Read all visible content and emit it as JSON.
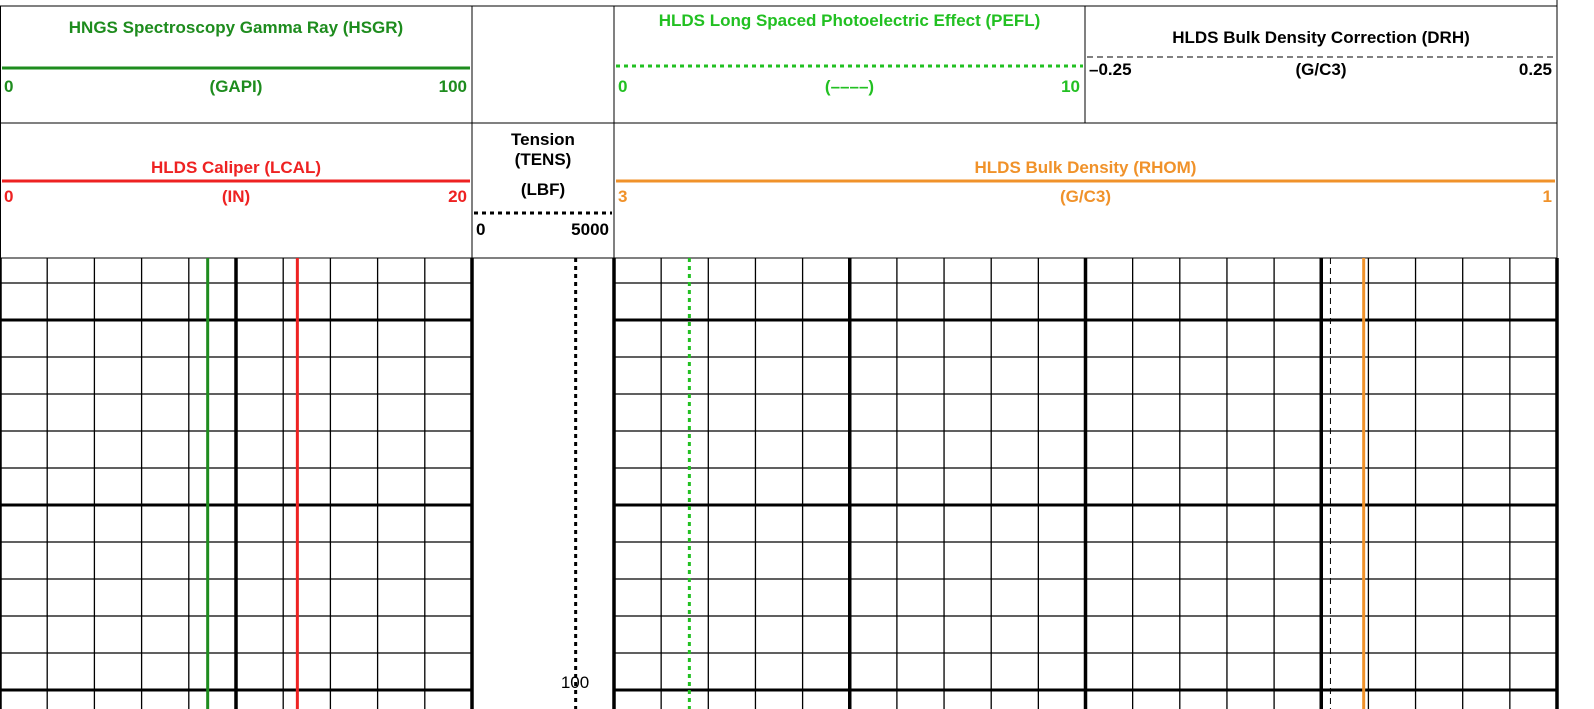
{
  "chart_data": {
    "type": "well-log",
    "depth_ticks": [
      100
    ],
    "curves": [
      {
        "name": "HNGS Spectroscopy Gamma Ray (HSGR)",
        "unit": "(GAPI)",
        "color": "#1e8c1e",
        "line_style": "solid",
        "xlim": [
          0,
          100
        ],
        "xticks": [
          0,
          100
        ],
        "values": [
          44
        ]
      },
      {
        "name": "HLDS Long Spaced Photoelectric Effect (PEFL)",
        "unit": "(––––)",
        "color": "#22c022",
        "line_style": "dotted",
        "xlim": [
          0,
          10
        ],
        "xticks": [
          0,
          10
        ],
        "values": [
          1.6
        ]
      },
      {
        "name": "HLDS Bulk Density Correction (DRH)",
        "unit": "(G/C3)",
        "color": "#000000",
        "line_style": "dashed",
        "xlim": [
          -0.25,
          0.25
        ],
        "xticks": [
          {
            "value": -0.25,
            "label": "–0.25"
          },
          0.25
        ],
        "values": [
          0.01
        ]
      },
      {
        "name": "HLDS Caliper (LCAL)",
        "unit": "(IN)",
        "color": "#ee2222",
        "line_style": "solid",
        "xlim": [
          0,
          20
        ],
        "xticks": [
          0,
          20
        ],
        "values": [
          12.6
        ]
      },
      {
        "name": "Tension (TENS)",
        "unit": "(LBF)",
        "color": "#000000",
        "line_style": "dotted",
        "xlim": [
          0,
          5000
        ],
        "xticks": [
          0,
          5000
        ],
        "values": [
          3650
        ]
      },
      {
        "name": "HLDS Bulk Density (RHOM)",
        "unit": "(G/C3)",
        "color": "#f0922a",
        "line_style": "solid",
        "xlim": [
          3,
          1
        ],
        "xticks": [
          3,
          1
        ],
        "values": [
          1.41
        ]
      }
    ]
  }
}
